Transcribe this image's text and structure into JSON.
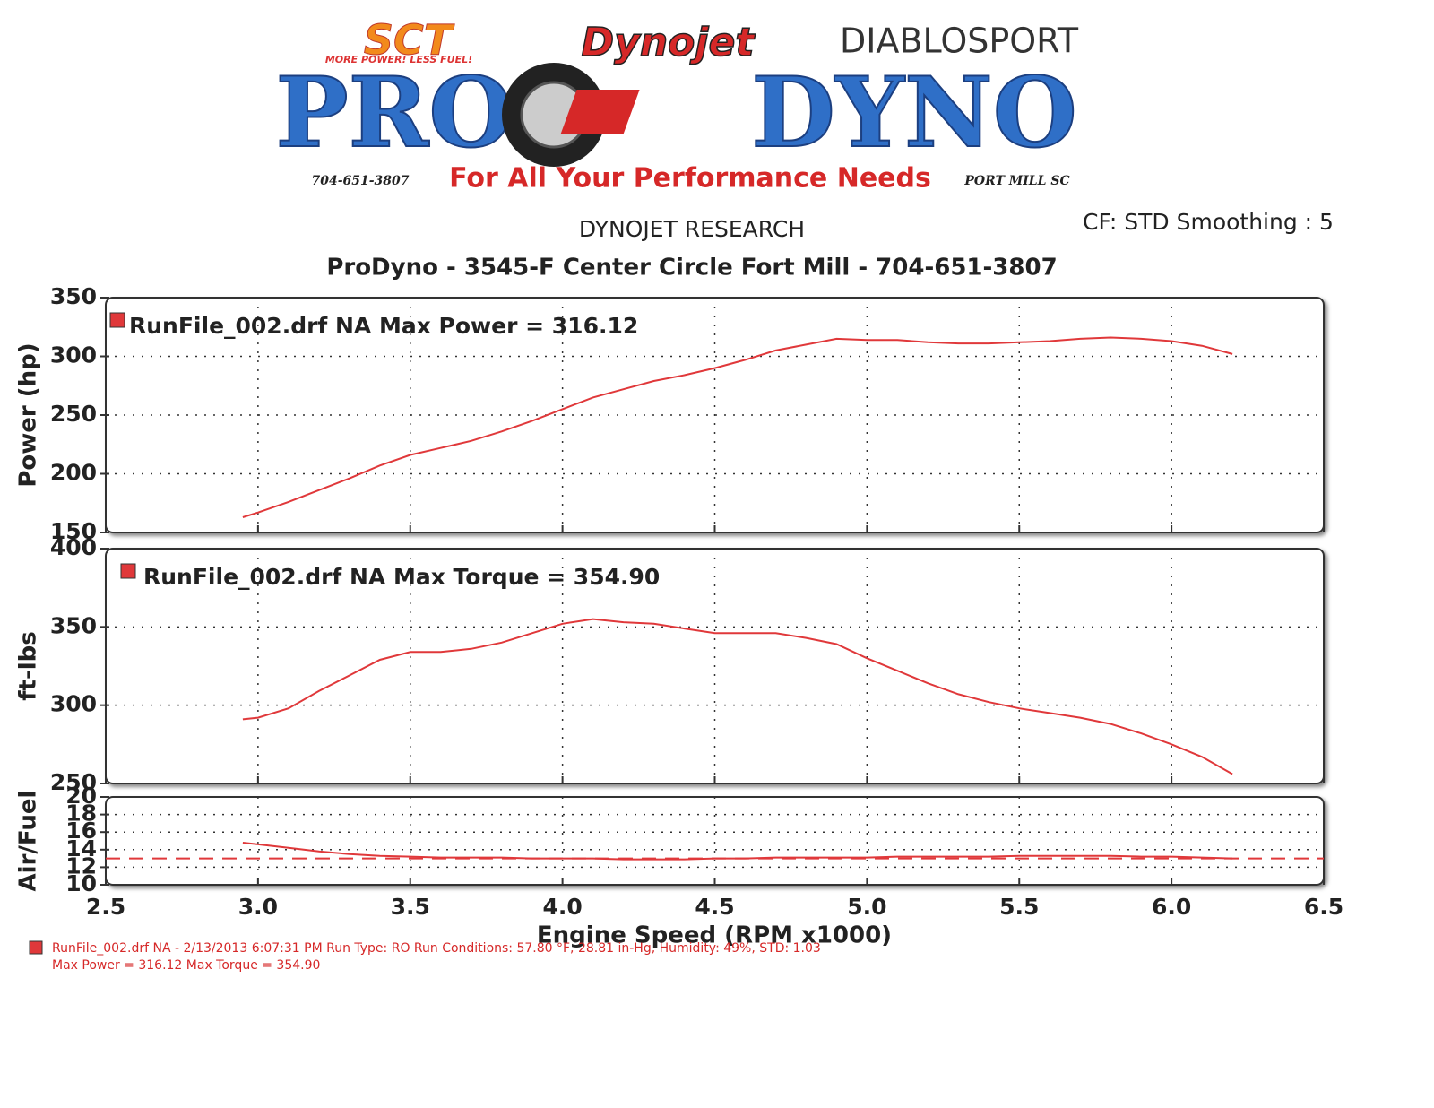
{
  "header": {
    "sct": "SCT",
    "sct_tagline": "MORE POWER! LESS FUEL!",
    "dynojet": "Dynojet",
    "diablosport": "DIABLOSPORT",
    "logo_left": "PRO",
    "logo_right": "DYNO",
    "phone": "704-651-3807",
    "slogan": "For All Your Performance Needs",
    "location": "PORT MILL SC"
  },
  "title": "DYNOJET RESEARCH",
  "subtitle": "ProDyno - 3545-F Center Circle Fort Mill  - 704-651-3807",
  "corner_note": "CF: STD  Smoothing : 5",
  "xlabel": "Engine Speed (RPM x1000)",
  "footer": [
    "RunFile_002.drf NA - 2/13/2013 6:07:31 PM  Run Type: RO  Run Conditions: 57.80 °F, 28.81 in-Hg,  Humidity:  49%, STD: 1.03",
    "Max Power = 316.12  Max Torque = 354.90"
  ],
  "chart_data": [
    {
      "type": "line",
      "ylabel": "Power (hp)",
      "xlim": [
        2.5,
        6.5
      ],
      "ylim": [
        150,
        350
      ],
      "yticks": [
        150,
        200,
        250,
        300,
        350
      ],
      "grid": true,
      "x": [
        2.95,
        3.0,
        3.1,
        3.2,
        3.3,
        3.4,
        3.5,
        3.6,
        3.7,
        3.8,
        3.9,
        4.0,
        4.1,
        4.2,
        4.3,
        4.4,
        4.5,
        4.6,
        4.7,
        4.8,
        4.9,
        5.0,
        5.1,
        5.2,
        5.3,
        5.4,
        5.5,
        5.6,
        5.7,
        5.8,
        5.9,
        6.0,
        6.1,
        6.2
      ],
      "series": [
        {
          "name": "RunFile_002.drf NA Max Power = 316.12",
          "color": "#e0383a",
          "values": [
            163,
            167,
            176,
            186,
            196,
            207,
            216,
            222,
            228,
            236,
            245,
            255,
            265,
            272,
            279,
            284,
            290,
            297,
            305,
            310,
            315,
            314,
            314,
            312,
            311,
            311,
            312,
            313,
            315,
            316,
            315,
            313,
            309,
            302
          ]
        }
      ]
    },
    {
      "type": "line",
      "ylabel": "ft-lbs",
      "xlim": [
        2.5,
        6.5
      ],
      "ylim": [
        250,
        400
      ],
      "yticks": [
        250,
        300,
        350,
        400
      ],
      "grid": true,
      "x": [
        2.95,
        3.0,
        3.1,
        3.2,
        3.3,
        3.4,
        3.5,
        3.6,
        3.7,
        3.8,
        3.9,
        4.0,
        4.1,
        4.2,
        4.3,
        4.4,
        4.5,
        4.6,
        4.7,
        4.8,
        4.9,
        5.0,
        5.1,
        5.2,
        5.3,
        5.4,
        5.5,
        5.6,
        5.7,
        5.8,
        5.9,
        6.0,
        6.1,
        6.2
      ],
      "series": [
        {
          "name": "RunFile_002.drf NA Max Torque = 354.90",
          "color": "#e0383a",
          "values": [
            291,
            292,
            298,
            309,
            319,
            329,
            334,
            334,
            336,
            340,
            346,
            352,
            355,
            353,
            352,
            349,
            346,
            346,
            346,
            343,
            339,
            330,
            322,
            314,
            307,
            302,
            298,
            295,
            292,
            288,
            282,
            275,
            267,
            256
          ]
        }
      ]
    },
    {
      "type": "line",
      "ylabel": "Air/Fuel",
      "xlim": [
        2.5,
        6.5
      ],
      "ylim": [
        10,
        20
      ],
      "yticks": [
        10,
        12,
        14,
        16,
        18,
        20
      ],
      "grid": true,
      "xticks": [
        2.5,
        {
          "value": 3,
          "label": "3.0"
        },
        3.5,
        {
          "value": 4,
          "label": "4.0"
        },
        4.5,
        {
          "value": 5,
          "label": "5.0"
        },
        5.5,
        {
          "value": 6,
          "label": "6.0"
        },
        6.5
      ],
      "reference_line": 13,
      "reference_color": "#e0383a",
      "x": [
        2.95,
        3.0,
        3.1,
        3.2,
        3.3,
        3.4,
        3.5,
        3.6,
        3.7,
        3.8,
        3.9,
        4.0,
        4.1,
        4.2,
        4.3,
        4.4,
        4.5,
        4.6,
        4.7,
        4.8,
        4.9,
        5.0,
        5.1,
        5.2,
        5.3,
        5.4,
        5.5,
        5.6,
        5.7,
        5.8,
        5.9,
        6.0,
        6.1,
        6.2
      ],
      "series": [
        {
          "name": "",
          "color": "#e0383a",
          "values": [
            14.8,
            14.6,
            14.2,
            13.8,
            13.5,
            13.3,
            13.2,
            13.1,
            13.1,
            13.1,
            13.0,
            13.0,
            13.0,
            12.9,
            12.9,
            12.9,
            13.0,
            13.0,
            13.1,
            13.1,
            13.1,
            13.1,
            13.2,
            13.2,
            13.2,
            13.2,
            13.3,
            13.3,
            13.3,
            13.3,
            13.2,
            13.2,
            13.1,
            13.0
          ]
        }
      ]
    }
  ]
}
